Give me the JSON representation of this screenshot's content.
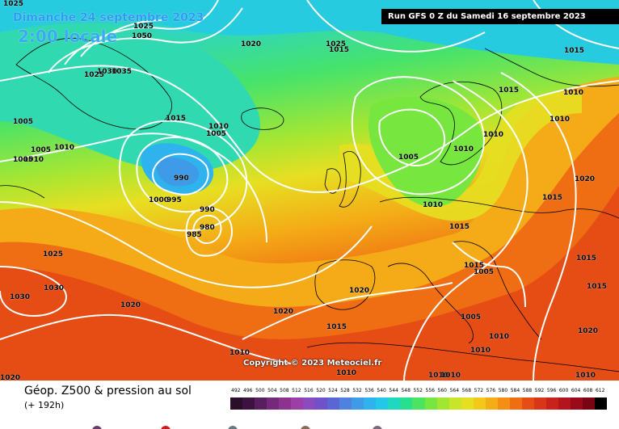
{
  "header": {
    "date": "Dimanche 24 septembre 2023",
    "time": "2:00 locale",
    "run": "Run GFS 0 Z du Samedi 16 septembre 2023"
  },
  "copyright": "Copyright © 2023 Meteociel.fr",
  "legend": {
    "title": "Géop. Z500 & pression au sol",
    "subtitle": "(+ 192h)",
    "scale_values": [
      "492",
      "496",
      "500",
      "504",
      "508",
      "512",
      "516",
      "520",
      "524",
      "528",
      "532",
      "536",
      "540",
      "544",
      "548",
      "552",
      "556",
      "560",
      "564",
      "568",
      "572",
      "576",
      "580",
      "584",
      "588",
      "592",
      "596",
      "600",
      "604",
      "608",
      "612"
    ],
    "scale_colors": [
      "#2a0f2a",
      "#3d1240",
      "#571f5e",
      "#74297a",
      "#8c338f",
      "#9b3fa6",
      "#8a4bbf",
      "#6f52c9",
      "#5a66d6",
      "#4f82e0",
      "#3f9be8",
      "#2fb3ee",
      "#22c8e6",
      "#1fd8c0",
      "#26e08f",
      "#4ae462",
      "#77e63e",
      "#a2e631",
      "#c8e529",
      "#e6df21",
      "#f2c91a",
      "#f5ad17",
      "#f48e14",
      "#ef6d13",
      "#e64d14",
      "#d93518",
      "#c8221b",
      "#b3141d",
      "#9a0a1b",
      "#7a0414",
      "#000000"
    ]
  },
  "pressure_labels": [
    "1025",
    "1050",
    "1025",
    "1030",
    "1035",
    "1025",
    "1020",
    "1025",
    "1015",
    "1010",
    "1005",
    "1010",
    "1005",
    "1005",
    "1010",
    "1005",
    "990",
    "1000",
    "995",
    "990",
    "980",
    "985",
    "1015",
    "1010",
    "1010",
    "1005",
    "1010",
    "1010",
    "1020",
    "1015",
    "1015",
    "1010",
    "1015",
    "1025",
    "1030",
    "1030",
    "1020",
    "1020",
    "1020",
    "1015",
    "1015",
    "1005",
    "1005",
    "1010",
    "1020",
    "1010",
    "1010",
    "1010",
    "1020",
    "1010",
    "1010",
    "1010",
    "1015",
    "1015",
    "1015"
  ]
}
